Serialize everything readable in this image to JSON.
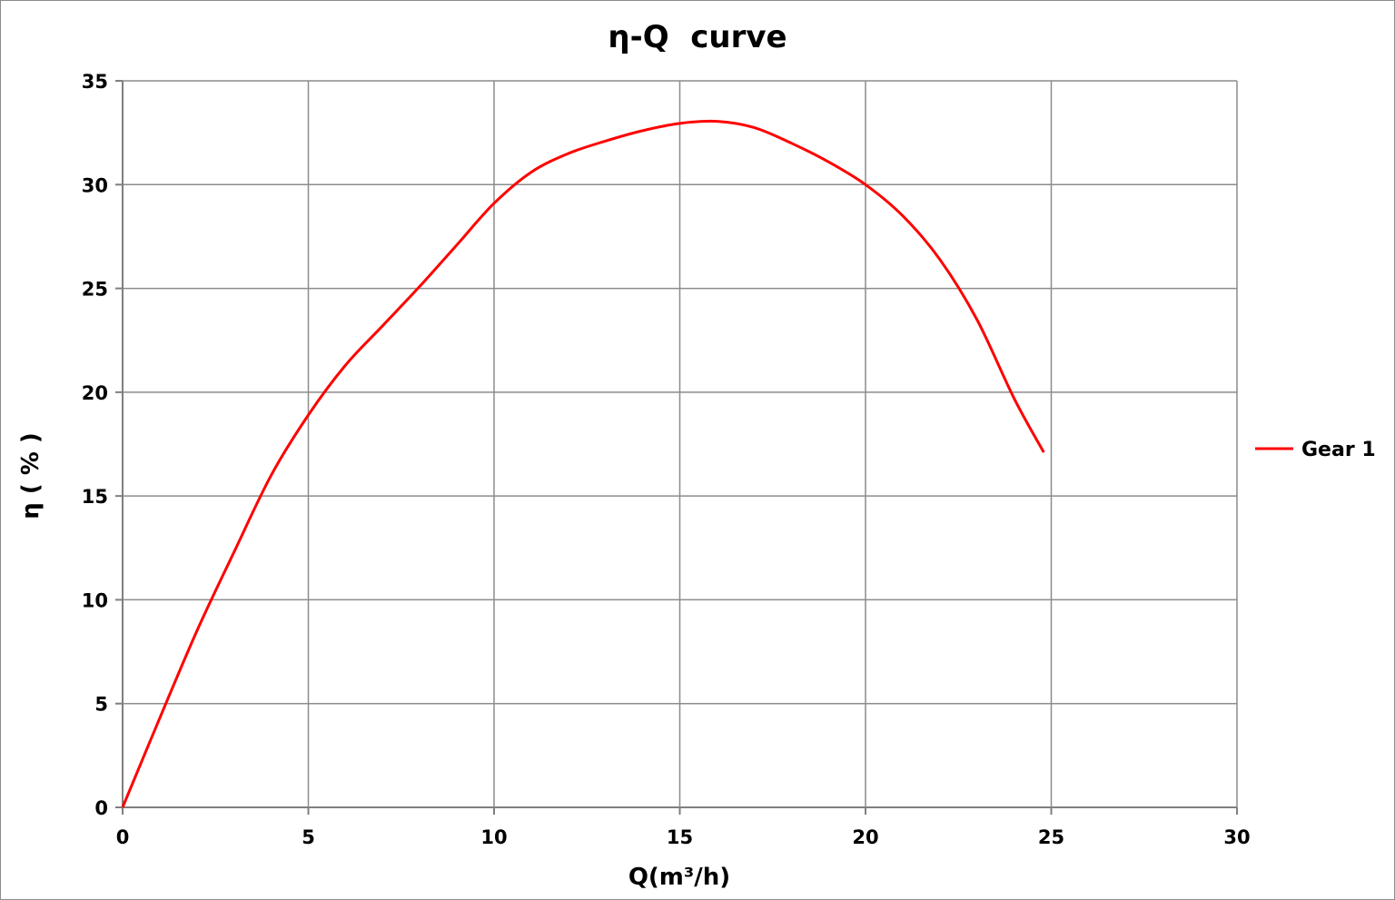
{
  "chart_data": {
    "type": "line",
    "title": "η-Q  curve",
    "xlabel": "Q(m³/h)",
    "ylabel": "η ( % )",
    "xlim": [
      0,
      30
    ],
    "ylim": [
      0,
      35
    ],
    "xticks": [
      "0",
      "5",
      "10",
      "15",
      "20",
      "25",
      "30"
    ],
    "yticks": [
      "0",
      "5",
      "10",
      "15",
      "20",
      "25",
      "30",
      "35"
    ],
    "grid": true,
    "legend_position": "right",
    "series": [
      {
        "name": "Gear 1",
        "color": "#ff0000",
        "x": [
          0,
          1,
          2,
          3,
          4,
          5,
          6,
          7,
          8,
          9,
          10,
          11,
          12,
          13,
          14,
          15,
          16,
          17,
          18,
          19,
          20,
          21,
          22,
          23,
          24,
          24.8
        ],
        "y": [
          0,
          4.3,
          8.5,
          12.3,
          16.0,
          18.9,
          21.3,
          23.2,
          25.1,
          27.1,
          29.1,
          30.6,
          31.5,
          32.1,
          32.6,
          32.95,
          33.05,
          32.75,
          32.0,
          31.1,
          30.0,
          28.5,
          26.4,
          23.5,
          19.7,
          17.1
        ]
      }
    ]
  }
}
